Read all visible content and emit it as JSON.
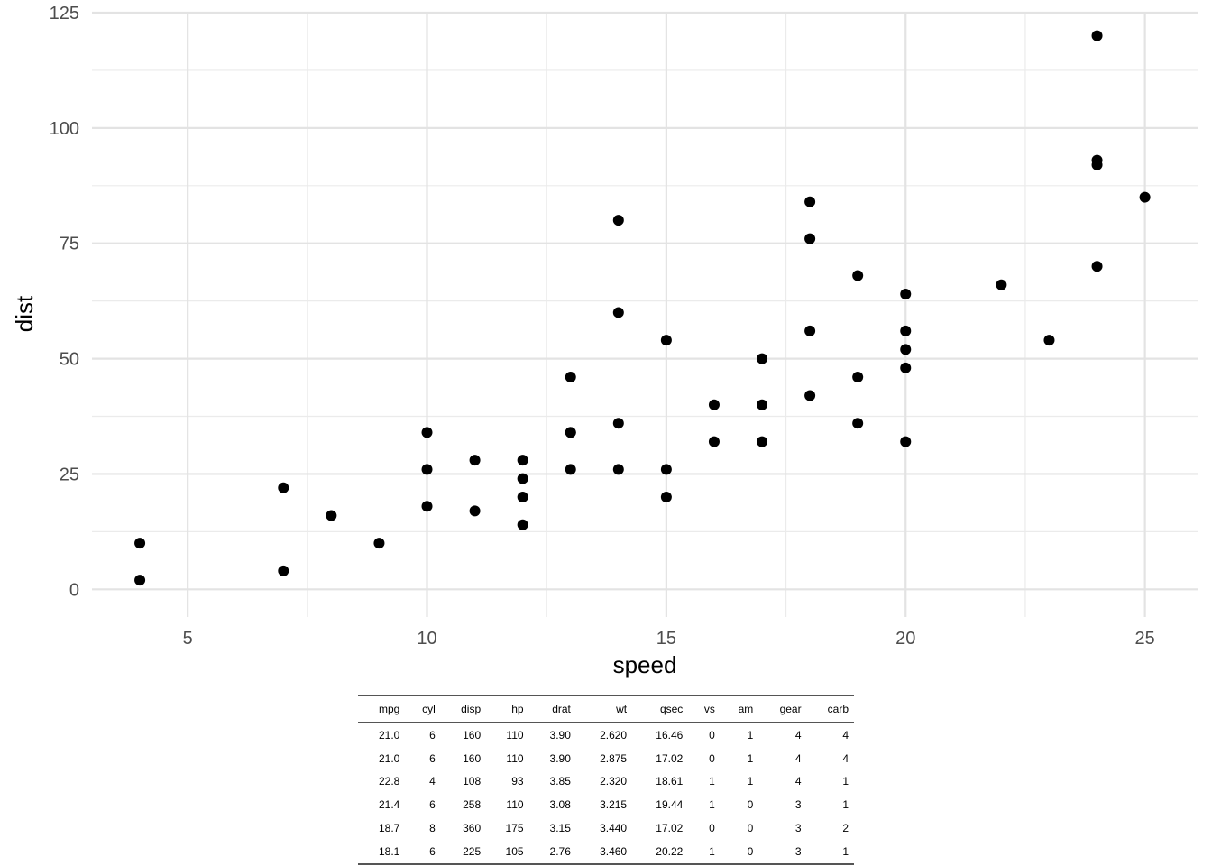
{
  "chart_data": {
    "type": "scatter",
    "xlabel": "speed",
    "ylabel": "dist",
    "xlim": [
      3,
      26.1
    ],
    "ylim": [
      -6,
      125
    ],
    "xticks": [
      5,
      10,
      15,
      20,
      25
    ],
    "yticks": [
      0,
      25,
      50,
      75,
      100,
      125
    ],
    "grid": true,
    "point_color": "#000000",
    "points": [
      [
        4,
        2
      ],
      [
        4,
        10
      ],
      [
        7,
        4
      ],
      [
        7,
        22
      ],
      [
        8,
        16
      ],
      [
        9,
        10
      ],
      [
        10,
        18
      ],
      [
        10,
        26
      ],
      [
        10,
        34
      ],
      [
        11,
        17
      ],
      [
        11,
        28
      ],
      [
        12,
        14
      ],
      [
        12,
        20
      ],
      [
        12,
        24
      ],
      [
        12,
        28
      ],
      [
        13,
        26
      ],
      [
        13,
        34
      ],
      [
        13,
        34
      ],
      [
        13,
        46
      ],
      [
        14,
        26
      ],
      [
        14,
        36
      ],
      [
        14,
        60
      ],
      [
        14,
        80
      ],
      [
        15,
        20
      ],
      [
        15,
        26
      ],
      [
        15,
        54
      ],
      [
        16,
        32
      ],
      [
        16,
        40
      ],
      [
        17,
        32
      ],
      [
        17,
        40
      ],
      [
        17,
        50
      ],
      [
        18,
        42
      ],
      [
        18,
        56
      ],
      [
        18,
        76
      ],
      [
        18,
        84
      ],
      [
        19,
        36
      ],
      [
        19,
        46
      ],
      [
        19,
        68
      ],
      [
        20,
        32
      ],
      [
        20,
        48
      ],
      [
        20,
        52
      ],
      [
        20,
        56
      ],
      [
        20,
        64
      ],
      [
        22,
        66
      ],
      [
        23,
        54
      ],
      [
        24,
        70
      ],
      [
        24,
        92
      ],
      [
        24,
        93
      ],
      [
        24,
        120
      ],
      [
        25,
        85
      ]
    ]
  },
  "table": {
    "columns": [
      "mpg",
      "cyl",
      "disp",
      "hp",
      "drat",
      "wt",
      "qsec",
      "vs",
      "am",
      "gear",
      "carb"
    ],
    "rows": [
      [
        "21.0",
        "6",
        "160",
        "110",
        "3.90",
        "2.620",
        "16.46",
        "0",
        "1",
        "4",
        "4"
      ],
      [
        "21.0",
        "6",
        "160",
        "110",
        "3.90",
        "2.875",
        "17.02",
        "0",
        "1",
        "4",
        "4"
      ],
      [
        "22.8",
        "4",
        "108",
        "93",
        "3.85",
        "2.320",
        "18.61",
        "1",
        "1",
        "4",
        "1"
      ],
      [
        "21.4",
        "6",
        "258",
        "110",
        "3.08",
        "3.215",
        "19.44",
        "1",
        "0",
        "3",
        "1"
      ],
      [
        "18.7",
        "8",
        "360",
        "175",
        "3.15",
        "3.440",
        "17.02",
        "0",
        "0",
        "3",
        "2"
      ],
      [
        "18.1",
        "6",
        "225",
        "105",
        "2.76",
        "3.460",
        "20.22",
        "1",
        "0",
        "3",
        "1"
      ]
    ]
  }
}
